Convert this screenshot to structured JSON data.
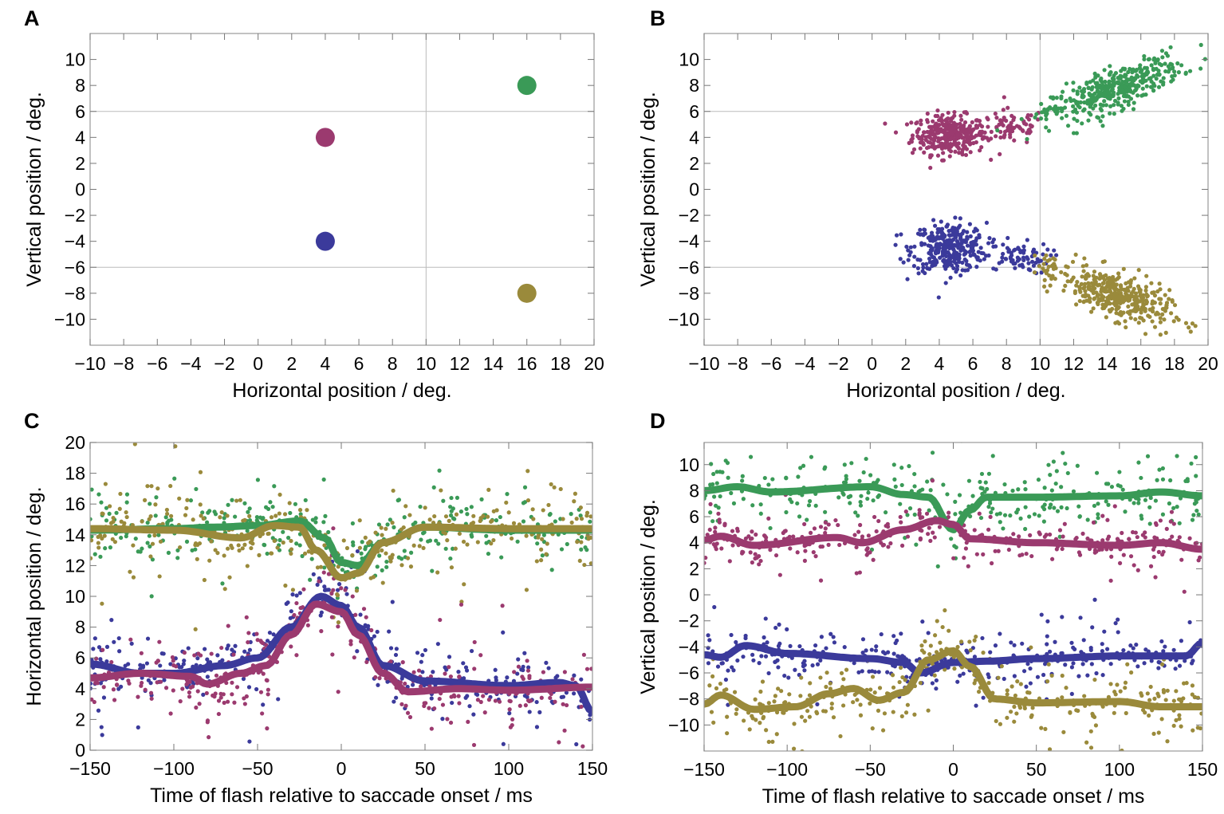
{
  "colors": {
    "magenta": "#9b3a6f",
    "blue": "#3b3a9b",
    "green": "#3a9a57",
    "olive": "#9a8a3b"
  },
  "chart_data": [
    {
      "panel": "A",
      "type": "scatter",
      "xlabel": "Horizontal position / deg.",
      "ylabel": "Vertical position / deg.",
      "xlim": [
        -10,
        20
      ],
      "ylim": [
        -12,
        12
      ],
      "xticks": [
        -10,
        -8,
        -6,
        -4,
        -2,
        0,
        2,
        4,
        6,
        8,
        10,
        12,
        14,
        16,
        18,
        20
      ],
      "yticks": [
        -10,
        -8,
        -6,
        -4,
        -2,
        0,
        2,
        4,
        6,
        8,
        10
      ],
      "gridlines": {
        "x": [
          10
        ],
        "y": [
          -6,
          6
        ]
      },
      "points": [
        {
          "x": 4,
          "y": 4,
          "color": "magenta"
        },
        {
          "x": 4,
          "y": -4,
          "color": "blue"
        },
        {
          "x": 16,
          "y": 8,
          "color": "green"
        },
        {
          "x": 16,
          "y": -8,
          "color": "olive"
        }
      ]
    },
    {
      "panel": "B",
      "type": "scatter",
      "xlabel": "Horizontal position / deg.",
      "ylabel": "Vertical position / deg.",
      "xlim": [
        -10,
        20
      ],
      "ylim": [
        -12,
        12
      ],
      "xticks": [
        -10,
        -8,
        -6,
        -4,
        -2,
        0,
        2,
        4,
        6,
        8,
        10,
        12,
        14,
        16,
        18,
        20
      ],
      "yticks": [
        -10,
        -8,
        -6,
        -4,
        -2,
        0,
        2,
        4,
        6,
        8,
        10
      ],
      "gridlines": {
        "x": [
          10
        ],
        "y": [
          -6,
          6
        ]
      },
      "clusters": [
        {
          "color": "magenta",
          "cx": 4.6,
          "cy": 4.2,
          "sx": 1.1,
          "sy": 0.75,
          "rho": 0,
          "n": 330
        },
        {
          "color": "magenta",
          "cx": 8.3,
          "cy": 4.8,
          "sx": 1.0,
          "sy": 0.7,
          "rho": 0,
          "n": 70
        },
        {
          "color": "blue",
          "cx": 4.6,
          "cy": -4.5,
          "sx": 1.1,
          "sy": 0.95,
          "rho": 0,
          "n": 330
        },
        {
          "color": "blue",
          "cx": 8.6,
          "cy": -5.3,
          "sx": 1.0,
          "sy": 0.6,
          "rho": 0,
          "n": 70
        },
        {
          "color": "green",
          "cx": 14.6,
          "cy": 7.8,
          "sx": 1.9,
          "sy": 1.2,
          "rho": 0.75,
          "n": 380
        },
        {
          "color": "green",
          "cx": 10.5,
          "cy": 5.9,
          "sx": 0.4,
          "sy": 0.3,
          "rho": 0,
          "n": 20
        },
        {
          "color": "olive",
          "cx": 14.5,
          "cy": -8.2,
          "sx": 1.6,
          "sy": 1.1,
          "rho": -0.6,
          "n": 380
        },
        {
          "color": "olive",
          "cx": 10.5,
          "cy": -5.9,
          "sx": 0.5,
          "sy": 0.35,
          "rho": 0,
          "n": 20
        }
      ]
    },
    {
      "panel": "C",
      "type": "scatter+line",
      "xlabel": "Time of flash relative to saccade onset / ms",
      "ylabel": "Horizontal position / deg.",
      "xlim": [
        -150,
        150
      ],
      "ylim": [
        0,
        20
      ],
      "xticks": [
        -150,
        -100,
        -50,
        0,
        50,
        100,
        150
      ],
      "yticks": [
        0,
        2,
        4,
        6,
        8,
        10,
        12,
        14,
        16,
        18,
        20
      ],
      "series": [
        {
          "color": "green",
          "scatter_sd": 1.4,
          "n": 330,
          "x": [
            -150,
            -100,
            -75,
            -50,
            -25,
            -10,
            0,
            10,
            25,
            50,
            100,
            150
          ],
          "y": [
            14.3,
            14.4,
            14.5,
            14.6,
            14.9,
            13.8,
            12.2,
            12.0,
            13.5,
            14.5,
            14.3,
            14.3
          ]
        },
        {
          "color": "olive",
          "scatter_sd": 1.4,
          "n": 330,
          "x": [
            -150,
            -100,
            -60,
            -40,
            -25,
            -15,
            0,
            10,
            25,
            50,
            100,
            150
          ],
          "y": [
            14.4,
            14.3,
            13.8,
            14.6,
            14.5,
            13.0,
            11.2,
            11.5,
            13.5,
            14.5,
            14.4,
            14.4
          ]
        },
        {
          "color": "blue",
          "scatter_sd": 1.3,
          "n": 330,
          "x": [
            -150,
            -120,
            -100,
            -70,
            -50,
            -30,
            -12,
            0,
            10,
            25,
            50,
            100,
            130,
            140,
            150
          ],
          "y": [
            5.6,
            5.0,
            5.0,
            5.5,
            6.0,
            8.0,
            10.0,
            9.4,
            8.0,
            5.5,
            4.5,
            4.2,
            4.4,
            4.2,
            2.5
          ]
        },
        {
          "color": "magenta",
          "scatter_sd": 1.5,
          "n": 330,
          "x": [
            -150,
            -120,
            -90,
            -80,
            -60,
            -45,
            -30,
            -15,
            0,
            10,
            25,
            40,
            70,
            100,
            150
          ],
          "y": [
            4.7,
            5.0,
            4.8,
            4.3,
            5.0,
            5.5,
            7.5,
            9.5,
            9.0,
            7.5,
            5.0,
            3.8,
            4.0,
            3.9,
            4.1
          ]
        }
      ]
    },
    {
      "panel": "D",
      "type": "scatter+line",
      "xlabel": "Time of flash relative to saccade onset / ms",
      "ylabel": "Vertical position / deg.",
      "xlim": [
        -150,
        150
      ],
      "ylim": [
        -12,
        11.7
      ],
      "xticks": [
        -150,
        -100,
        -50,
        0,
        50,
        100,
        150
      ],
      "yticks": [
        -10,
        -8,
        -6,
        -4,
        -2,
        0,
        2,
        4,
        6,
        8,
        10
      ],
      "series": [
        {
          "color": "green",
          "scatter_sd": 1.5,
          "n": 320,
          "x": [
            -150,
            -130,
            -110,
            -50,
            -30,
            -15,
            0,
            10,
            20,
            50,
            100,
            125,
            150
          ],
          "y": [
            8.0,
            8.3,
            7.9,
            8.3,
            7.7,
            7.5,
            5.0,
            6.5,
            7.5,
            7.5,
            7.6,
            7.9,
            7.6
          ]
        },
        {
          "color": "magenta",
          "scatter_sd": 1.0,
          "n": 330,
          "x": [
            -150,
            -140,
            -120,
            -70,
            -55,
            -30,
            -10,
            0,
            10,
            50,
            100,
            125,
            150
          ],
          "y": [
            4.2,
            4.5,
            3.8,
            4.4,
            4.0,
            5.0,
            5.7,
            5.4,
            4.3,
            4.0,
            3.8,
            4.0,
            3.5
          ]
        },
        {
          "color": "blue",
          "scatter_sd": 1.1,
          "n": 330,
          "x": [
            -150,
            -140,
            -125,
            -100,
            -50,
            -30,
            -20,
            0,
            20,
            50,
            100,
            140,
            150
          ],
          "y": [
            -4.6,
            -4.8,
            -3.9,
            -4.5,
            -4.9,
            -5.2,
            -6.0,
            -5.2,
            -5.1,
            -4.9,
            -4.7,
            -4.7,
            -3.7
          ]
        },
        {
          "color": "olive",
          "scatter_sd": 1.3,
          "n": 330,
          "x": [
            -150,
            -140,
            -120,
            -95,
            -75,
            -60,
            -45,
            -30,
            -15,
            0,
            10,
            25,
            50,
            100,
            125,
            150
          ],
          "y": [
            -8.4,
            -7.7,
            -8.8,
            -8.6,
            -7.6,
            -7.2,
            -8.1,
            -7.5,
            -5.0,
            -4.3,
            -5.5,
            -8.0,
            -8.3,
            -8.2,
            -8.6,
            -8.6
          ]
        }
      ]
    }
  ]
}
